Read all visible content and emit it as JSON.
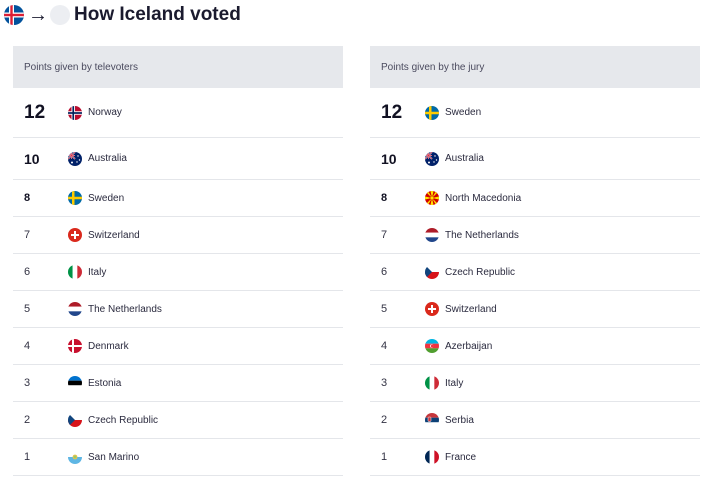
{
  "header": {
    "arrow": "→",
    "title": "How Iceland voted"
  },
  "televoters": {
    "heading": "Points given by televoters",
    "rows": [
      {
        "points": "12",
        "country": "Norway"
      },
      {
        "points": "10",
        "country": "Australia"
      },
      {
        "points": "8",
        "country": "Sweden"
      },
      {
        "points": "7",
        "country": "Switzerland"
      },
      {
        "points": "6",
        "country": "Italy"
      },
      {
        "points": "5",
        "country": "The Netherlands"
      },
      {
        "points": "4",
        "country": "Denmark"
      },
      {
        "points": "3",
        "country": "Estonia"
      },
      {
        "points": "2",
        "country": "Czech Republic"
      },
      {
        "points": "1",
        "country": "San Marino"
      }
    ]
  },
  "jury": {
    "heading": "Points given by the jury",
    "rows": [
      {
        "points": "12",
        "country": "Sweden"
      },
      {
        "points": "10",
        "country": "Australia"
      },
      {
        "points": "8",
        "country": "North Macedonia"
      },
      {
        "points": "7",
        "country": "The Netherlands"
      },
      {
        "points": "6",
        "country": "Czech Republic"
      },
      {
        "points": "5",
        "country": "Switzerland"
      },
      {
        "points": "4",
        "country": "Azerbaijan"
      },
      {
        "points": "3",
        "country": "Italy"
      },
      {
        "points": "2",
        "country": "Serbia"
      },
      {
        "points": "1",
        "country": "France"
      }
    ]
  }
}
